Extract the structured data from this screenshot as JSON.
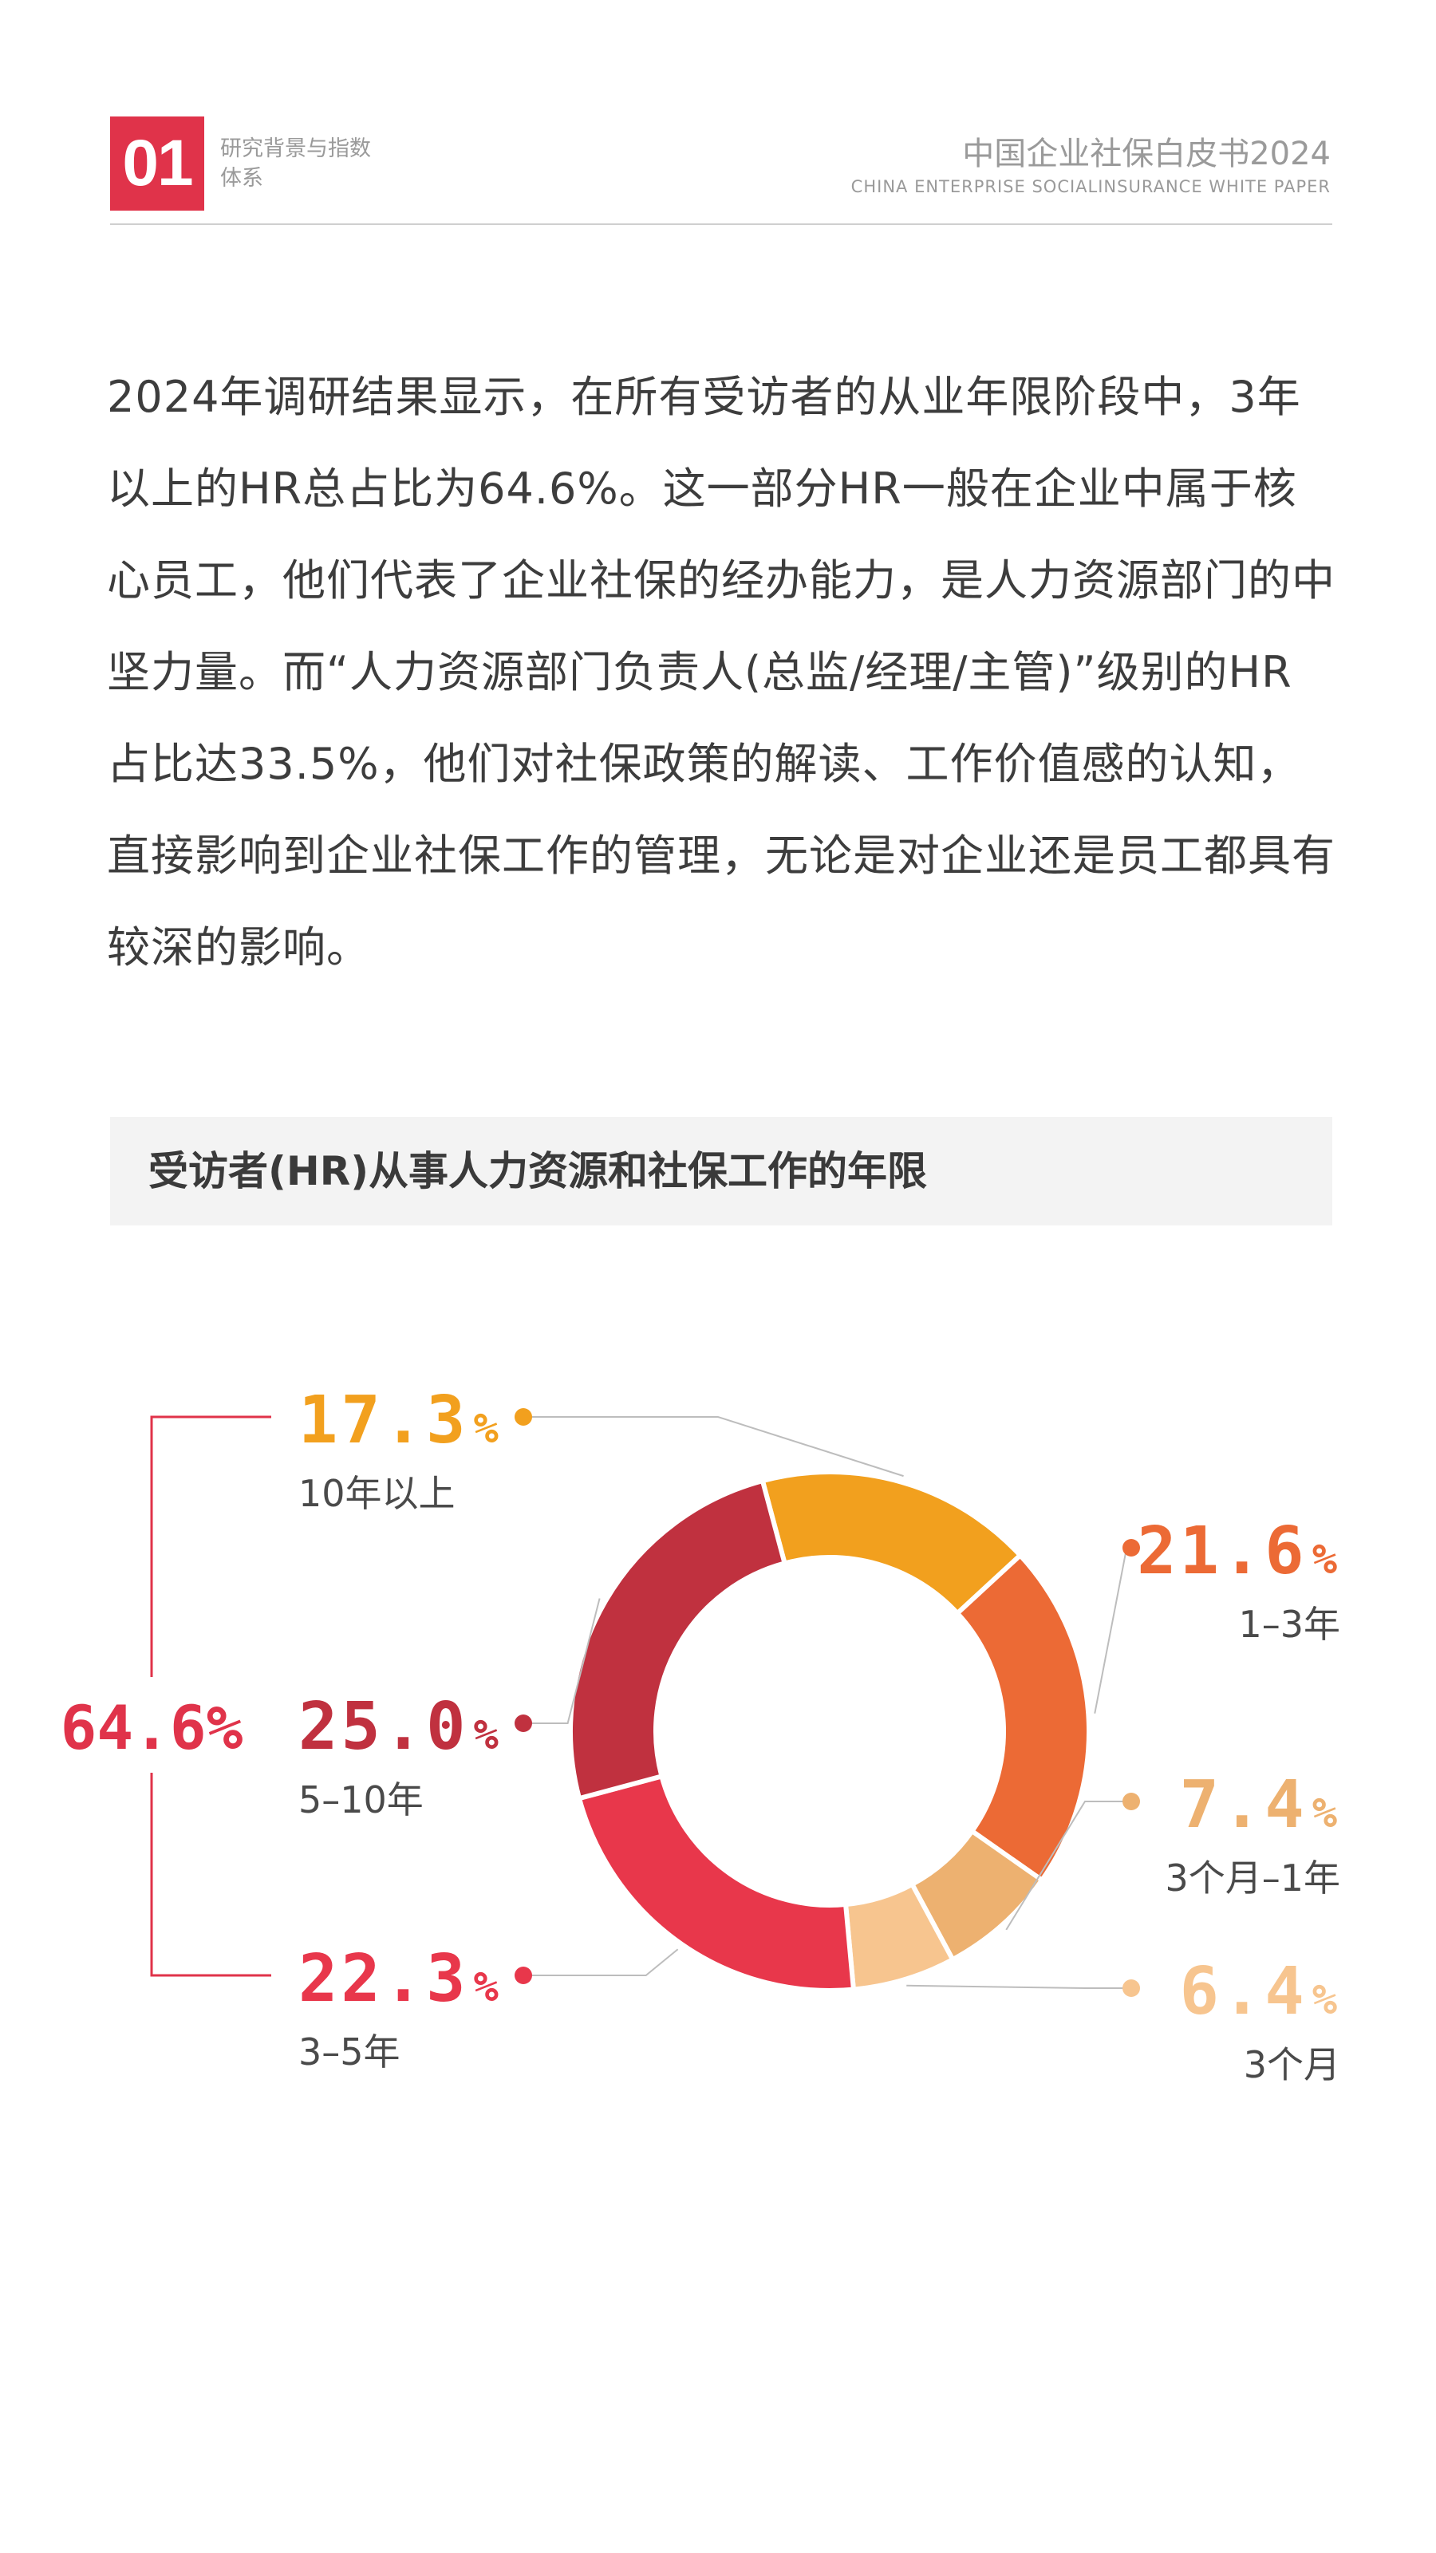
{
  "header": {
    "chapter_number": "01",
    "chapter_title": "研究背景与指数体系",
    "report_title": "中国企业社保白皮书2024",
    "report_subtitle": "CHINA ENTERPRISE SOCIALINSURANCE WHITE PAPER"
  },
  "body": {
    "paragraph": "2024年调研结果显示，在所有受访者的从业年限阶段中，3年以上的HR总占比为64.6%。这一部分HR一般在企业中属于核心员工，他们代表了企业社保的经办能力，是人力资源部门的中坚力量。而“人力资源部门负责人(总监/经理/主管)”级别的HR占比达33.5%，他们对社保政策的解读、工作价值感的认知，直接影响到企业社保工作的管理，无论是对企业还是员工都具有较深的影响。"
  },
  "chart_title": "受访者(HR)从事人力资源和社保工作的年限",
  "chart_data": {
    "type": "pie",
    "variant": "donut",
    "title": "受访者(HR)从事人力资源和社保工作的年限",
    "slices": [
      {
        "value": 17.3,
        "value_label": "17.3",
        "unit": "%",
        "category": "10年以上",
        "color": "#f2a01e",
        "side": "left"
      },
      {
        "value": 21.6,
        "value_label": "21.6",
        "unit": "%",
        "category": "1–3年",
        "color": "#ec6a35",
        "side": "right"
      },
      {
        "value": 7.4,
        "value_label": "7.4",
        "unit": "%",
        "category": "3个月–1年",
        "color": "#edb170",
        "side": "right"
      },
      {
        "value": 6.4,
        "value_label": "6.4",
        "unit": "%",
        "category": "3个月",
        "color": "#f7c58f",
        "side": "right"
      },
      {
        "value": 22.3,
        "value_label": "22.3",
        "unit": "%",
        "category": "3–5年",
        "color": "#e8374b",
        "side": "left"
      },
      {
        "value": 25.0,
        "value_label": "25.0",
        "unit": "%",
        "category": "5–10年",
        "color": "#c0313f",
        "side": "left"
      }
    ],
    "group_total": {
      "label": "64.6%",
      "color": "#e0334a",
      "covers": [
        "10年以上",
        "5–10年",
        "3–5年"
      ]
    }
  }
}
